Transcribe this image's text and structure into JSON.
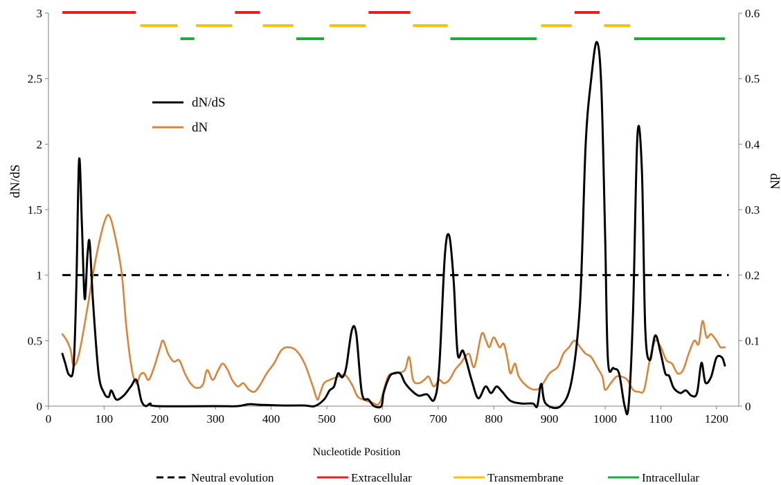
{
  "chart_data": {
    "type": "line",
    "xlabel": "Nucleotide  Position",
    "ylabel_left": "dN/dS",
    "ylabel_right": "dN",
    "xlim": [
      0,
      1240
    ],
    "ylim_left": [
      0,
      3
    ],
    "ylim_right": [
      0,
      0.6
    ],
    "x_ticks": [
      "0",
      "100",
      "200",
      "300",
      "400",
      "500",
      "600",
      "700",
      "800",
      "900",
      "1000",
      "1100",
      "1200"
    ],
    "y_left_ticks": [
      "0",
      "0.5",
      "1",
      "1.5",
      "2",
      "2.5",
      "3"
    ],
    "y_right_ticks": [
      "0",
      "0.1",
      "0.2",
      "0.3",
      "0.4",
      "0.5",
      "0.6"
    ],
    "grid": false,
    "inner_legend": [
      {
        "label": "dN/dS",
        "color": "#000000"
      },
      {
        "label": "dN",
        "color": "#D9843A"
      }
    ],
    "bottom_legend": [
      {
        "label": "Neutral evolution",
        "color": "#000000",
        "style": "dashed"
      },
      {
        "label": "Extracellular",
        "color": "#EE1C1C",
        "style": "solid"
      },
      {
        "label": "Transmembrane",
        "color": "#FFC000",
        "style": "solid"
      },
      {
        "label": "Intracellular",
        "color": "#1FAA3C",
        "style": "solid"
      }
    ],
    "neutral_line_value": 1,
    "series": [
      {
        "name": "dN/dS",
        "axis": "left",
        "color": "#000000",
        "points": [
          [
            25,
            0.4
          ],
          [
            30,
            0.33
          ],
          [
            37,
            0.24
          ],
          [
            45,
            0.3
          ],
          [
            50,
            0.9
          ],
          [
            55,
            1.88
          ],
          [
            60,
            1.4
          ],
          [
            65,
            0.82
          ],
          [
            70,
            1.15
          ],
          [
            74,
            1.25
          ],
          [
            80,
            0.8
          ],
          [
            90,
            0.25
          ],
          [
            100,
            0.1
          ],
          [
            108,
            0.07
          ],
          [
            113,
            0.12
          ],
          [
            122,
            0.05
          ],
          [
            135,
            0.08
          ],
          [
            148,
            0.15
          ],
          [
            158,
            0.2
          ],
          [
            167,
            0.04
          ],
          [
            175,
            0.0
          ],
          [
            183,
            0.02
          ],
          [
            195,
            0.0
          ],
          [
            300,
            0.0
          ],
          [
            340,
            0.0
          ],
          [
            360,
            0.015
          ],
          [
            380,
            0.01
          ],
          [
            420,
            0.005
          ],
          [
            460,
            0.005
          ],
          [
            478,
            0.0
          ],
          [
            495,
            0.05
          ],
          [
            505,
            0.12
          ],
          [
            513,
            0.15
          ],
          [
            520,
            0.25
          ],
          [
            528,
            0.22
          ],
          [
            535,
            0.3
          ],
          [
            545,
            0.58
          ],
          [
            553,
            0.55
          ],
          [
            563,
            0.1
          ],
          [
            575,
            0.05
          ],
          [
            585,
            0.0
          ],
          [
            598,
            0.0
          ],
          [
            602,
            0.1
          ],
          [
            612,
            0.22
          ],
          [
            620,
            0.25
          ],
          [
            632,
            0.25
          ],
          [
            640,
            0.18
          ],
          [
            652,
            0.12
          ],
          [
            665,
            0.08
          ],
          [
            680,
            0.09
          ],
          [
            693,
            0.05
          ],
          [
            702,
            0.3
          ],
          [
            712,
            1.15
          ],
          [
            720,
            1.3
          ],
          [
            728,
            0.95
          ],
          [
            735,
            0.4
          ],
          [
            745,
            0.42
          ],
          [
            760,
            0.2
          ],
          [
            772,
            0.06
          ],
          [
            785,
            0.15
          ],
          [
            795,
            0.1
          ],
          [
            805,
            0.15
          ],
          [
            815,
            0.11
          ],
          [
            830,
            0.04
          ],
          [
            850,
            0.02
          ],
          [
            870,
            0.02
          ],
          [
            878,
            0.0
          ],
          [
            885,
            0.17
          ],
          [
            893,
            0.02
          ],
          [
            920,
            0.0
          ],
          [
            940,
            0.2
          ],
          [
            955,
            0.8
          ],
          [
            965,
            2.0
          ],
          [
            975,
            2.5
          ],
          [
            985,
            2.78
          ],
          [
            993,
            2.45
          ],
          [
            1000,
            1.3
          ],
          [
            1005,
            0.35
          ],
          [
            1015,
            0.29
          ],
          [
            1025,
            0.25
          ],
          [
            1035,
            0.0
          ],
          [
            1042,
            0.0
          ],
          [
            1050,
            0.7
          ],
          [
            1058,
            2.07
          ],
          [
            1066,
            1.8
          ],
          [
            1072,
            0.6
          ],
          [
            1080,
            0.35
          ],
          [
            1090,
            0.54
          ],
          [
            1100,
            0.4
          ],
          [
            1108,
            0.25
          ],
          [
            1115,
            0.23
          ],
          [
            1123,
            0.14
          ],
          [
            1135,
            0.1
          ],
          [
            1145,
            0.12
          ],
          [
            1155,
            0.08
          ],
          [
            1165,
            0.1
          ],
          [
            1173,
            0.33
          ],
          [
            1180,
            0.18
          ],
          [
            1190,
            0.22
          ],
          [
            1200,
            0.37
          ],
          [
            1210,
            0.37
          ],
          [
            1215,
            0.31
          ]
        ]
      },
      {
        "name": "dN",
        "axis": "right",
        "color": "#D9843A",
        "points": [
          [
            25,
            0.11
          ],
          [
            33,
            0.1
          ],
          [
            40,
            0.085
          ],
          [
            45,
            0.062
          ],
          [
            55,
            0.08
          ],
          [
            70,
            0.15
          ],
          [
            85,
            0.225
          ],
          [
            100,
            0.28
          ],
          [
            110,
            0.29
          ],
          [
            122,
            0.25
          ],
          [
            132,
            0.2
          ],
          [
            140,
            0.12
          ],
          [
            150,
            0.055
          ],
          [
            158,
            0.035
          ],
          [
            165,
            0.048
          ],
          [
            172,
            0.05
          ],
          [
            180,
            0.04
          ],
          [
            190,
            0.06
          ],
          [
            200,
            0.088
          ],
          [
            206,
            0.1
          ],
          [
            215,
            0.08
          ],
          [
            225,
            0.068
          ],
          [
            235,
            0.07
          ],
          [
            245,
            0.05
          ],
          [
            255,
            0.035
          ],
          [
            265,
            0.028
          ],
          [
            277,
            0.032
          ],
          [
            285,
            0.055
          ],
          [
            295,
            0.04
          ],
          [
            305,
            0.055
          ],
          [
            313,
            0.065
          ],
          [
            322,
            0.055
          ],
          [
            330,
            0.04
          ],
          [
            340,
            0.03
          ],
          [
            350,
            0.035
          ],
          [
            360,
            0.025
          ],
          [
            370,
            0.022
          ],
          [
            380,
            0.032
          ],
          [
            392,
            0.05
          ],
          [
            405,
            0.065
          ],
          [
            418,
            0.085
          ],
          [
            430,
            0.09
          ],
          [
            445,
            0.085
          ],
          [
            460,
            0.065
          ],
          [
            475,
            0.03
          ],
          [
            483,
            0.01
          ],
          [
            488,
            0.02
          ],
          [
            495,
            0.035
          ],
          [
            505,
            0.04
          ],
          [
            520,
            0.045
          ],
          [
            532,
            0.048
          ],
          [
            540,
            0.04
          ],
          [
            547,
            0.03
          ],
          [
            555,
            0.015
          ],
          [
            565,
            0.01
          ],
          [
            580,
            0.006
          ],
          [
            595,
            0.005
          ],
          [
            610,
            0.045
          ],
          [
            625,
            0.05
          ],
          [
            640,
            0.055
          ],
          [
            648,
            0.075
          ],
          [
            655,
            0.04
          ],
          [
            665,
            0.035
          ],
          [
            675,
            0.04
          ],
          [
            683,
            0.045
          ],
          [
            692,
            0.03
          ],
          [
            702,
            0.04
          ],
          [
            710,
            0.035
          ],
          [
            720,
            0.04
          ],
          [
            730,
            0.055
          ],
          [
            740,
            0.065
          ],
          [
            755,
            0.08
          ],
          [
            765,
            0.06
          ],
          [
            778,
            0.11
          ],
          [
            786,
            0.1
          ],
          [
            792,
            0.09
          ],
          [
            800,
            0.105
          ],
          [
            810,
            0.09
          ],
          [
            818,
            0.095
          ],
          [
            825,
            0.07
          ],
          [
            830,
            0.05
          ],
          [
            838,
            0.065
          ],
          [
            845,
            0.045
          ],
          [
            860,
            0.03
          ],
          [
            875,
            0.025
          ],
          [
            885,
            0.03
          ],
          [
            900,
            0.05
          ],
          [
            915,
            0.06
          ],
          [
            925,
            0.08
          ],
          [
            935,
            0.09
          ],
          [
            945,
            0.1
          ],
          [
            955,
            0.09
          ],
          [
            965,
            0.08
          ],
          [
            975,
            0.075
          ],
          [
            985,
            0.06
          ],
          [
            995,
            0.045
          ],
          [
            1000,
            0.025
          ],
          [
            1010,
            0.035
          ],
          [
            1020,
            0.045
          ],
          [
            1030,
            0.045
          ],
          [
            1040,
            0.04
          ],
          [
            1050,
            0.025
          ],
          [
            1060,
            0.022
          ],
          [
            1070,
            0.025
          ],
          [
            1080,
            0.07
          ],
          [
            1090,
            0.1
          ],
          [
            1100,
            0.09
          ],
          [
            1110,
            0.07
          ],
          [
            1120,
            0.065
          ],
          [
            1130,
            0.05
          ],
          [
            1140,
            0.055
          ],
          [
            1150,
            0.08
          ],
          [
            1160,
            0.1
          ],
          [
            1168,
            0.095
          ],
          [
            1175,
            0.13
          ],
          [
            1182,
            0.105
          ],
          [
            1190,
            0.11
          ],
          [
            1200,
            0.1
          ],
          [
            1207,
            0.09
          ],
          [
            1215,
            0.09
          ]
        ]
      }
    ],
    "domain_bars": [
      {
        "type": "Extracellular",
        "color": "#EE1C1C",
        "ranges": [
          [
            25,
            157
          ],
          [
            335,
            380
          ],
          [
            575,
            650
          ],
          [
            945,
            990
          ]
        ]
      },
      {
        "type": "Transmembrane",
        "color": "#FFC000",
        "ranges": [
          [
            165,
            232
          ],
          [
            265,
            330
          ],
          [
            385,
            440
          ],
          [
            505,
            570
          ],
          [
            655,
            717
          ],
          [
            885,
            940
          ],
          [
            998,
            1045
          ]
        ]
      },
      {
        "type": "Intracellular",
        "color": "#1FAA3C",
        "ranges": [
          [
            237,
            262
          ],
          [
            445,
            495
          ],
          [
            722,
            877
          ],
          [
            1052,
            1215
          ]
        ]
      }
    ]
  }
}
